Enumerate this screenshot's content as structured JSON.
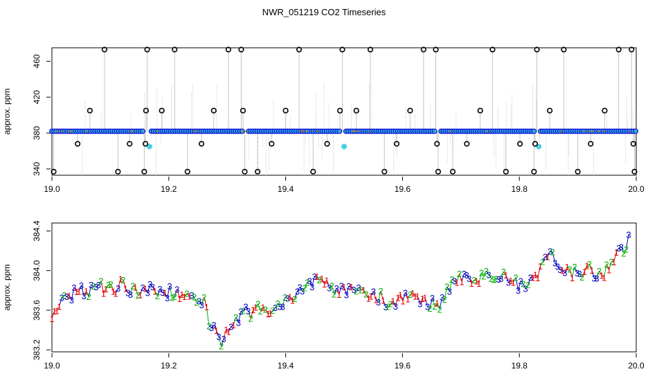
{
  "title": "NWR_051219  CO2 Timeseries",
  "chart_data": [
    {
      "type": "scatter",
      "xlabel": "",
      "ylabel": "approx. ppm",
      "xlim": [
        19.0,
        20.0
      ],
      "ylim": [
        333,
        475
      ],
      "xticks": [
        "19.0",
        "19.2",
        "19.4",
        "19.6",
        "19.8",
        "20.0"
      ],
      "yticks": [
        "340",
        "380",
        "420",
        "460"
      ],
      "baseline": 382,
      "baseline_color": "#1010e0",
      "outlier_color": "#000000",
      "flag_color": "#40d0e0",
      "outliers": [
        {
          "x": 19.003,
          "y": 337
        },
        {
          "x": 19.044,
          "y": 368
        },
        {
          "x": 19.065,
          "y": 405
        },
        {
          "x": 19.09,
          "y": 473
        },
        {
          "x": 19.113,
          "y": 337
        },
        {
          "x": 19.133,
          "y": 368
        },
        {
          "x": 19.158,
          "y": 337
        },
        {
          "x": 19.16,
          "y": 368
        },
        {
          "x": 19.161,
          "y": 405
        },
        {
          "x": 19.163,
          "y": 473
        },
        {
          "x": 19.188,
          "y": 405
        },
        {
          "x": 19.21,
          "y": 473
        },
        {
          "x": 19.232,
          "y": 337
        },
        {
          "x": 19.256,
          "y": 368
        },
        {
          "x": 19.277,
          "y": 405
        },
        {
          "x": 19.302,
          "y": 473
        },
        {
          "x": 19.324,
          "y": 473
        },
        {
          "x": 19.327,
          "y": 405
        },
        {
          "x": 19.33,
          "y": 337
        },
        {
          "x": 19.352,
          "y": 337
        },
        {
          "x": 19.376,
          "y": 368
        },
        {
          "x": 19.4,
          "y": 405
        },
        {
          "x": 19.423,
          "y": 473
        },
        {
          "x": 19.447,
          "y": 337
        },
        {
          "x": 19.471,
          "y": 368
        },
        {
          "x": 19.493,
          "y": 405
        },
        {
          "x": 19.497,
          "y": 473
        },
        {
          "x": 19.521,
          "y": 405
        },
        {
          "x": 19.545,
          "y": 473
        },
        {
          "x": 19.569,
          "y": 337
        },
        {
          "x": 19.59,
          "y": 368
        },
        {
          "x": 19.613,
          "y": 405
        },
        {
          "x": 19.636,
          "y": 473
        },
        {
          "x": 19.657,
          "y": 473
        },
        {
          "x": 19.659,
          "y": 368
        },
        {
          "x": 19.661,
          "y": 337
        },
        {
          "x": 19.686,
          "y": 337
        },
        {
          "x": 19.71,
          "y": 368
        },
        {
          "x": 19.733,
          "y": 405
        },
        {
          "x": 19.754,
          "y": 473
        },
        {
          "x": 19.777,
          "y": 337
        },
        {
          "x": 19.801,
          "y": 368
        },
        {
          "x": 19.825,
          "y": 337
        },
        {
          "x": 19.827,
          "y": 368
        },
        {
          "x": 19.83,
          "y": 473
        },
        {
          "x": 19.852,
          "y": 405
        },
        {
          "x": 19.876,
          "y": 473
        },
        {
          "x": 19.9,
          "y": 337
        },
        {
          "x": 19.922,
          "y": 368
        },
        {
          "x": 19.946,
          "y": 405
        },
        {
          "x": 19.97,
          "y": 473
        },
        {
          "x": 19.992,
          "y": 473
        },
        {
          "x": 19.995,
          "y": 368
        },
        {
          "x": 19.997,
          "y": 337
        }
      ],
      "flagged": [
        {
          "x": 19.167,
          "y": 365
        },
        {
          "x": 19.5,
          "y": 365
        },
        {
          "x": 19.833,
          "y": 365
        }
      ]
    },
    {
      "type": "line",
      "xlabel": "",
      "ylabel": "approx. ppm",
      "xlim": [
        19.0,
        20.0
      ],
      "ylim": [
        383.18,
        384.48
      ],
      "xticks": [
        "19.0",
        "19.2",
        "19.4",
        "19.6",
        "19.8",
        "20.0"
      ],
      "yticks": [
        "383.2",
        "383.6",
        "384.0",
        "384.4"
      ],
      "series": [
        {
          "marker": "1",
          "color": "#e00000"
        },
        {
          "marker": "2",
          "color": "#00b000"
        },
        {
          "marker": "3",
          "color": "#0000c0"
        }
      ],
      "profile": [
        [
          19.0,
          383.55
        ],
        [
          19.02,
          383.7
        ],
        [
          19.04,
          383.78
        ],
        [
          19.06,
          383.8
        ],
        [
          19.08,
          383.83
        ],
        [
          19.1,
          383.82
        ],
        [
          19.12,
          383.86
        ],
        [
          19.14,
          383.8
        ],
        [
          19.16,
          383.82
        ],
        [
          19.18,
          383.8
        ],
        [
          19.2,
          383.78
        ],
        [
          19.22,
          383.76
        ],
        [
          19.24,
          383.74
        ],
        [
          19.26,
          383.68
        ],
        [
          19.27,
          383.45
        ],
        [
          19.28,
          383.36
        ],
        [
          19.29,
          383.3
        ],
        [
          19.3,
          383.35
        ],
        [
          19.32,
          383.55
        ],
        [
          19.34,
          383.58
        ],
        [
          19.36,
          383.62
        ],
        [
          19.38,
          383.63
        ],
        [
          19.4,
          383.68
        ],
        [
          19.42,
          383.8
        ],
        [
          19.44,
          383.86
        ],
        [
          19.46,
          383.9
        ],
        [
          19.48,
          383.82
        ],
        [
          19.5,
          383.8
        ],
        [
          19.52,
          383.78
        ],
        [
          19.54,
          383.76
        ],
        [
          19.56,
          383.74
        ],
        [
          19.58,
          383.65
        ],
        [
          19.6,
          383.72
        ],
        [
          19.62,
          383.72
        ],
        [
          19.64,
          383.68
        ],
        [
          19.66,
          383.64
        ],
        [
          19.68,
          383.82
        ],
        [
          19.7,
          383.95
        ],
        [
          19.72,
          383.92
        ],
        [
          19.74,
          383.95
        ],
        [
          19.76,
          383.96
        ],
        [
          19.78,
          383.9
        ],
        [
          19.8,
          383.85
        ],
        [
          19.82,
          383.88
        ],
        [
          19.84,
          384.05
        ],
        [
          19.85,
          384.22
        ],
        [
          19.86,
          384.1
        ],
        [
          19.88,
          384.0
        ],
        [
          19.9,
          383.98
        ],
        [
          19.92,
          384.0
        ],
        [
          19.94,
          383.96
        ],
        [
          19.96,
          384.1
        ],
        [
          19.98,
          384.22
        ],
        [
          19.99,
          384.4
        ]
      ]
    }
  ]
}
